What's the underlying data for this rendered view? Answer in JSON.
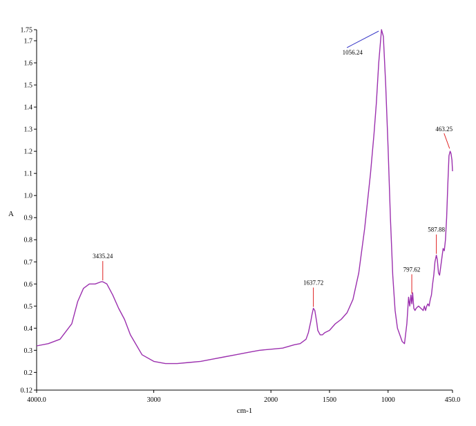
{
  "chart_data": {
    "type": "line",
    "title": "",
    "xlabel": "cm-1",
    "ylabel": "A",
    "xlim": [
      4000.0,
      450.0
    ],
    "ylim": [
      0.12,
      1.75
    ],
    "x_reversed": true,
    "grid": false,
    "x_ticks": [
      {
        "value": 4000,
        "label": "4000.0"
      },
      {
        "value": 3000,
        "label": "3000"
      },
      {
        "value": 2000,
        "label": "2000"
      },
      {
        "value": 1500,
        "label": "1500"
      },
      {
        "value": 1000,
        "label": "1000"
      },
      {
        "value": 450,
        "label": "450.0"
      }
    ],
    "y_ticks": [
      {
        "value": 1.75,
        "label": "1.75"
      },
      {
        "value": 1.7,
        "label": "1.7"
      },
      {
        "value": 1.6,
        "label": "1.6"
      },
      {
        "value": 1.5,
        "label": "1.5"
      },
      {
        "value": 1.4,
        "label": "1.4"
      },
      {
        "value": 1.3,
        "label": "1.3"
      },
      {
        "value": 1.2,
        "label": "1.2"
      },
      {
        "value": 1.1,
        "label": "1.1"
      },
      {
        "value": 1.0,
        "label": "1.0"
      },
      {
        "value": 0.9,
        "label": "0.9"
      },
      {
        "value": 0.8,
        "label": "0.8"
      },
      {
        "value": 0.7,
        "label": "0.7"
      },
      {
        "value": 0.6,
        "label": "0.6"
      },
      {
        "value": 0.5,
        "label": "0.5"
      },
      {
        "value": 0.4,
        "label": "0.4"
      },
      {
        "value": 0.3,
        "label": "0.3"
      },
      {
        "value": 0.2,
        "label": "0.2"
      },
      {
        "value": 0.12,
        "label": "0.12"
      }
    ],
    "series": [
      {
        "color": "#9b2fae",
        "x": [
          4000,
          3900,
          3800,
          3700,
          3650,
          3600,
          3550,
          3500,
          3450,
          3435,
          3400,
          3350,
          3300,
          3250,
          3200,
          3100,
          3000,
          2900,
          2800,
          2700,
          2600,
          2500,
          2400,
          2300,
          2200,
          2100,
          2000,
          1900,
          1800,
          1750,
          1700,
          1680,
          1660,
          1650,
          1637.72,
          1625,
          1610,
          1600,
          1580,
          1560,
          1540,
          1500,
          1450,
          1400,
          1350,
          1300,
          1250,
          1200,
          1150,
          1120,
          1100,
          1080,
          1056.24,
          1040,
          1020,
          1000,
          980,
          960,
          940,
          920,
          900,
          880,
          860,
          840,
          825,
          815,
          805,
          797.62,
          790,
          780,
          770,
          760,
          740,
          720,
          700,
          690,
          680,
          670,
          660,
          650,
          640,
          630,
          620,
          610,
          600,
          587.88,
          580,
          570,
          560,
          550,
          540,
          530,
          520,
          510,
          500,
          490,
          480,
          470,
          463.25,
          455,
          450
        ],
        "y": [
          0.32,
          0.33,
          0.35,
          0.42,
          0.52,
          0.58,
          0.6,
          0.6,
          0.61,
          0.61,
          0.6,
          0.55,
          0.49,
          0.44,
          0.37,
          0.28,
          0.25,
          0.24,
          0.24,
          0.245,
          0.25,
          0.26,
          0.27,
          0.28,
          0.29,
          0.3,
          0.305,
          0.31,
          0.325,
          0.33,
          0.35,
          0.38,
          0.43,
          0.46,
          0.49,
          0.48,
          0.43,
          0.39,
          0.37,
          0.37,
          0.38,
          0.39,
          0.42,
          0.44,
          0.47,
          0.53,
          0.65,
          0.85,
          1.1,
          1.28,
          1.42,
          1.6,
          1.75,
          1.72,
          1.5,
          1.22,
          0.9,
          0.64,
          0.48,
          0.4,
          0.37,
          0.34,
          0.33,
          0.42,
          0.54,
          0.5,
          0.55,
          0.51,
          0.56,
          0.49,
          0.48,
          0.49,
          0.5,
          0.49,
          0.48,
          0.5,
          0.48,
          0.5,
          0.51,
          0.5,
          0.53,
          0.55,
          0.6,
          0.64,
          0.7,
          0.73,
          0.71,
          0.65,
          0.64,
          0.68,
          0.72,
          0.76,
          0.75,
          0.8,
          0.9,
          1.05,
          1.18,
          1.2,
          1.19,
          1.16,
          1.11
        ]
      }
    ],
    "annotations": [
      {
        "x": 3435.24,
        "y": 0.61,
        "label": "3435.24"
      },
      {
        "x": 1637.72,
        "y": 0.49,
        "label": "1637.72"
      },
      {
        "x": 1056.24,
        "y": 1.75,
        "label": "1056.24"
      },
      {
        "x": 797.62,
        "y": 0.55,
        "label": "797.62"
      },
      {
        "x": 587.88,
        "y": 0.73,
        "label": "587.88"
      },
      {
        "x": 463.25,
        "y": 1.2,
        "label": "463.25"
      }
    ],
    "colors": {
      "line": "#9b2fae",
      "line_secondary": "#3a3ac8",
      "marker": "#e02020",
      "axis": "#000000"
    }
  }
}
